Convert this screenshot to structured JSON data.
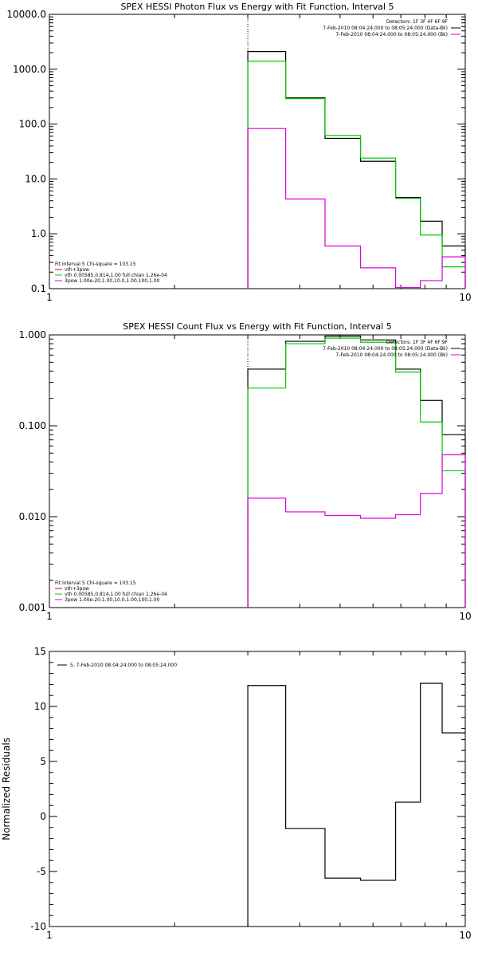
{
  "chart_data": [
    {
      "type": "line",
      "title": "SPEX HESSI Photon Flux vs Energy with Fit Function, Interval 5",
      "xlabel": "",
      "ylabel": "",
      "xscale": "log",
      "yscale": "log",
      "xlim": [
        1,
        10
      ],
      "ylim": [
        0.1,
        10000
      ],
      "x_ticks": [
        "1",
        "10"
      ],
      "y_ticks": [
        "0.1",
        "1.0",
        "10.0",
        "100.0",
        "1000.0",
        "10000.0"
      ],
      "marker_x": 3,
      "bin_edges": [
        3,
        3.7,
        4.6,
        5.6,
        6.8,
        7.8,
        8.8,
        10
      ],
      "series": [
        {
          "name": "",
          "color": "#000000",
          "values": [
            2100,
            300,
            55,
            21,
            4.6,
            1.7,
            0.6
          ]
        },
        {
          "name": "",
          "color": "#00cc00",
          "values": [
            1400,
            290,
            62,
            24,
            4.4,
            0.95,
            0.25
          ]
        },
        {
          "name": "",
          "color": "#dd00dd",
          "values": [
            83,
            4.3,
            0.6,
            0.24,
            0.105,
            0.14,
            0.38
          ]
        }
      ],
      "legend_top_right": [
        {
          "text": "Detectors: 1F 3F 4F 6F 9F",
          "color": ""
        },
        {
          "text": "7-Feb-2010 08:04:24.000 to 08:05:24.000 (Data-Bk)",
          "color": "#000000"
        },
        {
          "text": "7-Feb-2010 08:04:24.000 to 08:05:24.000 (Bk)",
          "color": "#dd00dd"
        }
      ],
      "legend_bottom_left": [
        {
          "text": "Fit Interval 5   Chi-square = 103.15",
          "color": ""
        },
        {
          "text": "vth+3pow",
          "color": "#dd0000"
        },
        {
          "text": "vth 0.00585,0.814,1.00   full chian 1.26e-04",
          "color": "#00cc00"
        },
        {
          "text": "3pow 1.00e-20,1.00,10.0,1.00,100,1.00",
          "color": "#dd00dd"
        }
      ]
    },
    {
      "type": "line",
      "title": "SPEX HESSI Count Flux vs Energy with Fit Function, Interval 5",
      "xlabel": "",
      "ylabel": "",
      "xscale": "log",
      "yscale": "log",
      "xlim": [
        1,
        10
      ],
      "ylim": [
        0.001,
        1
      ],
      "x_ticks": [
        "1",
        "10"
      ],
      "y_ticks": [
        "0.001",
        "0.010",
        "0.100",
        "1.000"
      ],
      "marker_x": 3,
      "bin_edges": [
        3,
        3.7,
        4.6,
        5.6,
        6.8,
        7.8,
        8.8,
        10
      ],
      "series": [
        {
          "name": "",
          "color": "#000000",
          "values": [
            0.42,
            0.85,
            0.97,
            0.88,
            0.42,
            0.19,
            0.08
          ]
        },
        {
          "name": "",
          "color": "#00cc00",
          "values": [
            0.26,
            0.8,
            0.92,
            0.83,
            0.39,
            0.11,
            0.032
          ]
        },
        {
          "name": "",
          "color": "#dd00dd",
          "values": [
            0.016,
            0.0113,
            0.0103,
            0.0096,
            0.0105,
            0.018,
            0.048
          ]
        }
      ],
      "legend_top_right": [
        {
          "text": "Detectors: 1F 3F 4F 6F 9F",
          "color": ""
        },
        {
          "text": "7-Feb-2010 08:04:24.000 to 08:05:24.000 (Data-Bk)",
          "color": "#000000"
        },
        {
          "text": "7-Feb-2010 08:04:24.000 to 08:05:24.000 (Bk)",
          "color": "#dd00dd"
        }
      ],
      "legend_bottom_left": [
        {
          "text": "Fit Interval 5   Chi-square = 103.15",
          "color": ""
        },
        {
          "text": "vth+3pow",
          "color": "#dd0000"
        },
        {
          "text": "vth 0.00585,0.814,1.00   full chian 1.26e-04",
          "color": "#00cc00"
        },
        {
          "text": "3pow 1.00e-20,1.00,10.0,1.00,100,1.00",
          "color": "#dd00dd"
        }
      ]
    },
    {
      "type": "line",
      "title": "",
      "xlabel": "",
      "ylabel": "Normalized Residuals",
      "xscale": "log",
      "yscale": "linear",
      "xlim": [
        1,
        10
      ],
      "ylim": [
        -10,
        15
      ],
      "x_ticks": [
        "1",
        "10"
      ],
      "y_ticks": [
        "15",
        "10",
        "5",
        "0",
        "-5",
        "-10"
      ],
      "bin_edges": [
        3,
        3.7,
        4.6,
        5.6,
        6.8,
        7.8,
        8.8,
        10
      ],
      "series": [
        {
          "name": "5,  7-Feb-2010 08:04:24.000 to 08:05:24.000",
          "color": "#000000",
          "values": [
            11.9,
            -1.1,
            -5.6,
            -5.8,
            1.3,
            12.1,
            7.6
          ]
        }
      ]
    }
  ]
}
